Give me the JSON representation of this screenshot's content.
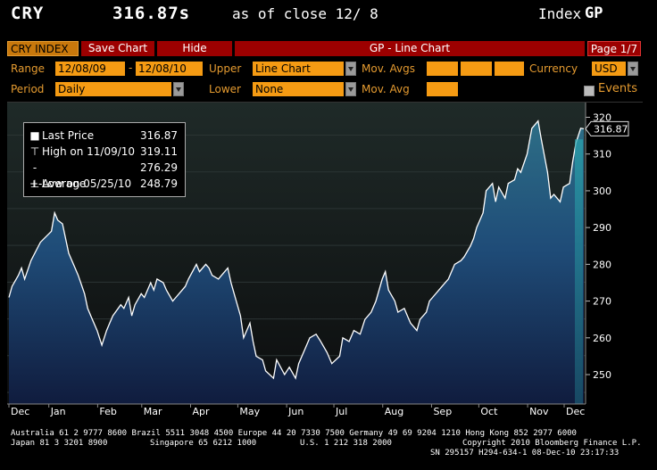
{
  "header": {
    "ticker": "CRY",
    "price": "316.87s",
    "as_of": "as of close 12/ 8",
    "index_label": "Index",
    "index_fn": "GP"
  },
  "toolbar": {
    "security": "CRY INDEX",
    "save_chart": "Save Chart",
    "hide": "Hide",
    "title": "GP - Line Chart",
    "page": "Page 1/7"
  },
  "settings": {
    "range_label": "Range",
    "range_start": "12/08/09",
    "range_end": "12/08/10",
    "upper_label": "Upper",
    "upper_value": "Line Chart",
    "mov_avgs_label": "Mov. Avgs",
    "currency_label": "Currency",
    "currency_value": "USD",
    "period_label": "Period",
    "period_value": "Daily",
    "lower_label": "Lower",
    "lower_value": "None",
    "mov_avg_label": "Mov. Avg",
    "events_label": "Events"
  },
  "legend": {
    "last_label": "Last Price",
    "last_value": "316.87",
    "high_label": "High on 11/09/10",
    "high_value": "319.11",
    "avg_label": "Average",
    "avg_value": "276.29",
    "low_label": "Low on 05/25/10",
    "low_value": "248.79"
  },
  "price_tag": "316.87",
  "footer": {
    "line1": "Australia 61 2 9777 8600 Brazil 5511 3048 4500 Europe 44 20 7330 7500 Germany 49 69 9204 1210 Hong Kong 852 2977 6000",
    "line2a": "Japan 81 3 3201 8900",
    "line2b": "Singapore 65 6212 1000",
    "line2c": "U.S. 1 212 318 2000",
    "line2d": "Copyright 2010 Bloomberg Finance L.P.",
    "line3": "SN 295157 H294-634-1 08-Dec-10 23:17:33"
  },
  "colors": {
    "accent": "#e59b30",
    "bar_red": "#9c0000",
    "field": "#f59b13"
  },
  "chart_data": {
    "type": "area",
    "title": "",
    "xlabel": "",
    "ylabel": "",
    "ylim": [
      242,
      324
    ],
    "yticks": [
      250,
      260,
      270,
      280,
      290,
      300,
      310,
      320
    ],
    "x_tick_labels": [
      "Dec",
      "Jan",
      "Feb",
      "Mar",
      "Apr",
      "May",
      "Jun",
      "Jul",
      "Aug",
      "Sep",
      "Oct",
      "Nov",
      "Dec"
    ],
    "x_year_labels": [
      "2009",
      "2010"
    ],
    "series": [
      {
        "points": [
          [
            "2009-12-08",
            271
          ],
          [
            "2009-12-10",
            274
          ],
          [
            "2009-12-14",
            277
          ],
          [
            "2009-12-16",
            279
          ],
          [
            "2009-12-18",
            276
          ],
          [
            "2009-12-22",
            281
          ],
          [
            "2009-12-28",
            286
          ],
          [
            "2010-01-04",
            289
          ],
          [
            "2010-01-06",
            294
          ],
          [
            "2010-01-08",
            292
          ],
          [
            "2010-01-11",
            291
          ],
          [
            "2010-01-13",
            287
          ],
          [
            "2010-01-15",
            283
          ],
          [
            "2010-01-19",
            279
          ],
          [
            "2010-01-21",
            277
          ],
          [
            "2010-01-25",
            272
          ],
          [
            "2010-01-27",
            268
          ],
          [
            "2010-01-29",
            266
          ],
          [
            "2010-02-02",
            262
          ],
          [
            "2010-02-05",
            258
          ],
          [
            "2010-02-08",
            262
          ],
          [
            "2010-02-10",
            264
          ],
          [
            "2010-02-12",
            266
          ],
          [
            "2010-02-17",
            269
          ],
          [
            "2010-02-19",
            268
          ],
          [
            "2010-02-22",
            271
          ],
          [
            "2010-02-24",
            266
          ],
          [
            "2010-02-26",
            269
          ],
          [
            "2010-03-02",
            272
          ],
          [
            "2010-03-04",
            271
          ],
          [
            "2010-03-08",
            275
          ],
          [
            "2010-03-10",
            273
          ],
          [
            "2010-03-12",
            276
          ],
          [
            "2010-03-16",
            275
          ],
          [
            "2010-03-18",
            273
          ],
          [
            "2010-03-22",
            270
          ],
          [
            "2010-03-24",
            271
          ],
          [
            "2010-03-26",
            272
          ],
          [
            "2010-03-30",
            274
          ],
          [
            "2010-04-01",
            276
          ],
          [
            "2010-04-06",
            280
          ],
          [
            "2010-04-08",
            278
          ],
          [
            "2010-04-12",
            280
          ],
          [
            "2010-04-14",
            279
          ],
          [
            "2010-04-16",
            277
          ],
          [
            "2010-04-20",
            276
          ],
          [
            "2010-04-22",
            277
          ],
          [
            "2010-04-26",
            279
          ],
          [
            "2010-04-28",
            275
          ],
          [
            "2010-04-30",
            272
          ],
          [
            "2010-05-04",
            266
          ],
          [
            "2010-05-06",
            260
          ],
          [
            "2010-05-10",
            264
          ],
          [
            "2010-05-12",
            259
          ],
          [
            "2010-05-14",
            255
          ],
          [
            "2010-05-18",
            254
          ],
          [
            "2010-05-20",
            251
          ],
          [
            "2010-05-25",
            249
          ],
          [
            "2010-05-27",
            254
          ],
          [
            "2010-06-01",
            250
          ],
          [
            "2010-06-04",
            252
          ],
          [
            "2010-06-08",
            249
          ],
          [
            "2010-06-10",
            253
          ],
          [
            "2010-06-14",
            257
          ],
          [
            "2010-06-17",
            260
          ],
          [
            "2010-06-21",
            261
          ],
          [
            "2010-06-24",
            259
          ],
          [
            "2010-06-28",
            256
          ],
          [
            "2010-07-01",
            253
          ],
          [
            "2010-07-06",
            255
          ],
          [
            "2010-07-08",
            260
          ],
          [
            "2010-07-12",
            259
          ],
          [
            "2010-07-15",
            262
          ],
          [
            "2010-07-19",
            261
          ],
          [
            "2010-07-22",
            265
          ],
          [
            "2010-07-26",
            267
          ],
          [
            "2010-07-29",
            270
          ],
          [
            "2010-08-02",
            276
          ],
          [
            "2010-08-04",
            278
          ],
          [
            "2010-08-06",
            273
          ],
          [
            "2010-08-10",
            270
          ],
          [
            "2010-08-12",
            267
          ],
          [
            "2010-08-16",
            268
          ],
          [
            "2010-08-18",
            266
          ],
          [
            "2010-08-20",
            264
          ],
          [
            "2010-08-24",
            262
          ],
          [
            "2010-08-26",
            265
          ],
          [
            "2010-08-30",
            267
          ],
          [
            "2010-09-01",
            270
          ],
          [
            "2010-09-03",
            271
          ],
          [
            "2010-09-07",
            273
          ],
          [
            "2010-09-09",
            274
          ],
          [
            "2010-09-13",
            276
          ],
          [
            "2010-09-15",
            278
          ],
          [
            "2010-09-17",
            280
          ],
          [
            "2010-09-21",
            281
          ],
          [
            "2010-09-23",
            282
          ],
          [
            "2010-09-27",
            285
          ],
          [
            "2010-09-29",
            287
          ],
          [
            "2010-10-01",
            290
          ],
          [
            "2010-10-05",
            294
          ],
          [
            "2010-10-07",
            300
          ],
          [
            "2010-10-11",
            302
          ],
          [
            "2010-10-13",
            297
          ],
          [
            "2010-10-15",
            301
          ],
          [
            "2010-10-19",
            298
          ],
          [
            "2010-10-21",
            302
          ],
          [
            "2010-10-25",
            303
          ],
          [
            "2010-10-27",
            306
          ],
          [
            "2010-10-29",
            305
          ],
          [
            "2010-11-02",
            310
          ],
          [
            "2010-11-05",
            317
          ],
          [
            "2010-11-09",
            319
          ],
          [
            "2010-11-11",
            314
          ],
          [
            "2010-11-15",
            305
          ],
          [
            "2010-11-17",
            298
          ],
          [
            "2010-11-19",
            299
          ],
          [
            "2010-11-23",
            297
          ],
          [
            "2010-11-25",
            301
          ],
          [
            "2010-11-29",
            302
          ],
          [
            "2010-12-01",
            308
          ],
          [
            "2010-12-03",
            313
          ],
          [
            "2010-12-06",
            317
          ],
          [
            "2010-12-08",
            316.87
          ]
        ]
      }
    ]
  }
}
